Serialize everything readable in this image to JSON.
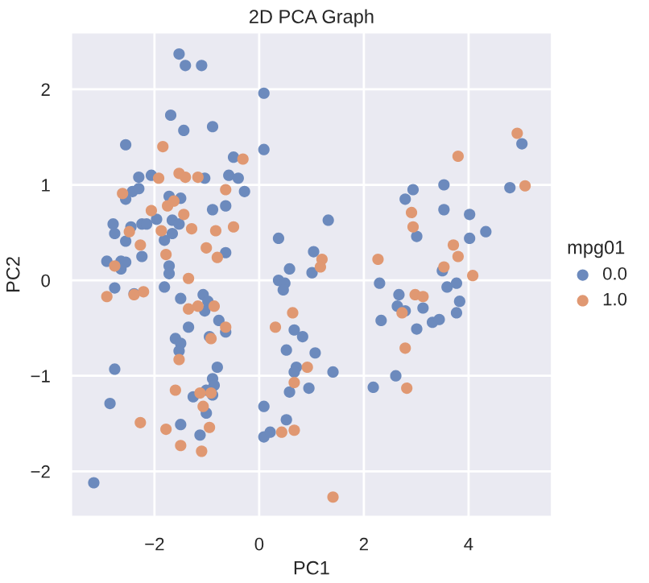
{
  "chart_data": {
    "type": "scatter",
    "title": "2D PCA Graph",
    "xlabel": "PC1",
    "ylabel": "PC2",
    "legend_title": "mpg01",
    "xlim": [
      -3.6,
      5.6
    ],
    "ylim": [
      -2.48,
      2.6
    ],
    "xticks": [
      {
        "value": -2,
        "label": "−2"
      },
      0,
      2,
      4
    ],
    "yticks": [
      {
        "value": -2,
        "label": "−2"
      },
      {
        "value": -1,
        "label": "−1"
      },
      0,
      1,
      2
    ],
    "grid": true,
    "legend": "right",
    "marker": "circle",
    "series": [
      {
        "name": "0.0",
        "color": "#6c8abd",
        "x": [
          -1.53,
          -1.41,
          -1.1,
          0.09,
          -1.69,
          -1.44,
          -0.89,
          -2.55,
          0.09,
          -0.49,
          -2.3,
          -2.06,
          -1.04,
          -0.58,
          -0.4,
          -2.42,
          -2.3,
          -2.55,
          -0.28,
          -1.72,
          -1.5,
          -0.89,
          -0.64,
          -1.96,
          -1.66,
          -1.53,
          -2.79,
          -2.76,
          -2.45,
          -2.24,
          -2.15,
          -1.66,
          -1.81,
          -2.55,
          0.37,
          -0.64,
          -2.24,
          -2.91,
          -2.64,
          -2.55,
          -1.72,
          -2.64,
          -1.72,
          -2.76,
          -2.39,
          -1.81,
          -1.5,
          -1.07,
          -0.98,
          -1.04,
          -0.77,
          -0.64,
          -1.35,
          -0.95,
          -1.6,
          -1.5,
          -1.53,
          -0.8,
          -2.76,
          -0.89,
          -0.86,
          -1.01,
          -1.26,
          -0.89,
          -2.85,
          -1.01,
          -1.5,
          -1.13,
          -3.16,
          0.09,
          0.09,
          1.32,
          1.04,
          0.58,
          1.01,
          2.94,
          2.79,
          3.53,
          3.01,
          3.53,
          4.02,
          4.02,
          4.33,
          3.5,
          4.79,
          5.02,
          0.37,
          0.49,
          0.46,
          0.67,
          0.83,
          0.52,
          1.07,
          0.71,
          0.67,
          1.41,
          0.95,
          0.58,
          0.52,
          0.21,
          2.3,
          2.67,
          2.64,
          2.79,
          3.13,
          2.33,
          3.01,
          3.31,
          3.44,
          3.77,
          3.83,
          3.59,
          3.77,
          2.61,
          2.18
        ],
        "values": [
          2.37,
          2.25,
          2.25,
          1.96,
          1.73,
          1.57,
          1.61,
          1.42,
          1.37,
          1.29,
          1.08,
          1.1,
          1.07,
          1.1,
          1.07,
          0.93,
          0.96,
          0.85,
          0.93,
          0.88,
          0.86,
          0.74,
          0.78,
          0.64,
          0.63,
          0.59,
          0.59,
          0.49,
          0.56,
          0.59,
          0.59,
          0.49,
          0.42,
          0.41,
          0.44,
          0.29,
          0.25,
          0.2,
          0.2,
          0.19,
          0.15,
          0.12,
          0.07,
          -0.08,
          -0.14,
          -0.07,
          -0.19,
          -0.15,
          -0.22,
          -0.32,
          -0.42,
          -0.54,
          -0.49,
          -0.59,
          -0.61,
          -0.66,
          -0.74,
          -0.91,
          -0.93,
          -1.03,
          -1.1,
          -1.15,
          -1.22,
          -1.2,
          -1.29,
          -1.39,
          -1.51,
          -1.62,
          -2.12,
          -1.32,
          -1.64,
          0.63,
          0.3,
          0.12,
          0.08,
          0.95,
          0.85,
          1.0,
          0.46,
          0.74,
          0.69,
          0.44,
          0.51,
          0.1,
          0.97,
          1.43,
          0.0,
          -0.03,
          -0.1,
          -0.52,
          -0.59,
          -0.73,
          -0.76,
          -0.91,
          -0.96,
          -0.96,
          -1.13,
          -1.17,
          -1.46,
          -1.59,
          -0.03,
          -0.15,
          -0.27,
          -0.32,
          -0.29,
          -0.42,
          -0.51,
          -0.44,
          -0.41,
          -0.34,
          -0.22,
          -0.07,
          -0.03,
          -1.0,
          -1.12
        ]
      },
      {
        "name": "1.0",
        "color": "#e09872",
        "x": [
          -1.84,
          -0.31,
          -1.92,
          -1.53,
          -1.41,
          -1.17,
          -2.61,
          -0.64,
          -1.63,
          -1.75,
          -2.06,
          -1.44,
          -2.48,
          -1.87,
          -1.29,
          -0.83,
          -0.49,
          -2.27,
          -1.01,
          -0.8,
          -1.78,
          -2.76,
          -1.35,
          -2.91,
          -2.39,
          -2.21,
          -1.17,
          -1.35,
          -0.86,
          -0.64,
          -0.92,
          -1.53,
          -1.6,
          -1.13,
          -0.92,
          -1.07,
          -2.27,
          -1.78,
          -0.95,
          -1.5,
          -1.1,
          0.31,
          1.2,
          1.17,
          2.27,
          3.8,
          2.91,
          2.94,
          3.71,
          3.8,
          3.53,
          4.08,
          4.93,
          5.08,
          0.64,
          0.92,
          0.67,
          0.43,
          0.67,
          1.41,
          2.98,
          3.13,
          2.73,
          2.79,
          2.82
        ],
        "values": [
          1.4,
          1.27,
          1.07,
          1.12,
          1.08,
          1.08,
          0.91,
          0.95,
          0.83,
          0.78,
          0.73,
          0.69,
          0.51,
          0.52,
          0.54,
          0.52,
          0.56,
          0.37,
          0.34,
          0.24,
          0.27,
          0.15,
          0.02,
          -0.17,
          -0.15,
          -0.12,
          -0.27,
          -0.3,
          -0.27,
          -0.49,
          -0.61,
          -0.83,
          -1.15,
          -1.18,
          -1.18,
          -1.32,
          -1.49,
          -1.56,
          -1.54,
          -1.73,
          -1.79,
          -0.49,
          0.22,
          0.14,
          0.22,
          1.3,
          0.71,
          0.56,
          0.37,
          0.25,
          0.14,
          0.05,
          1.54,
          0.99,
          -0.34,
          -0.91,
          -1.07,
          -1.59,
          -1.57,
          -2.27,
          -0.15,
          -0.17,
          -0.34,
          -0.71,
          -1.13
        ]
      }
    ]
  }
}
